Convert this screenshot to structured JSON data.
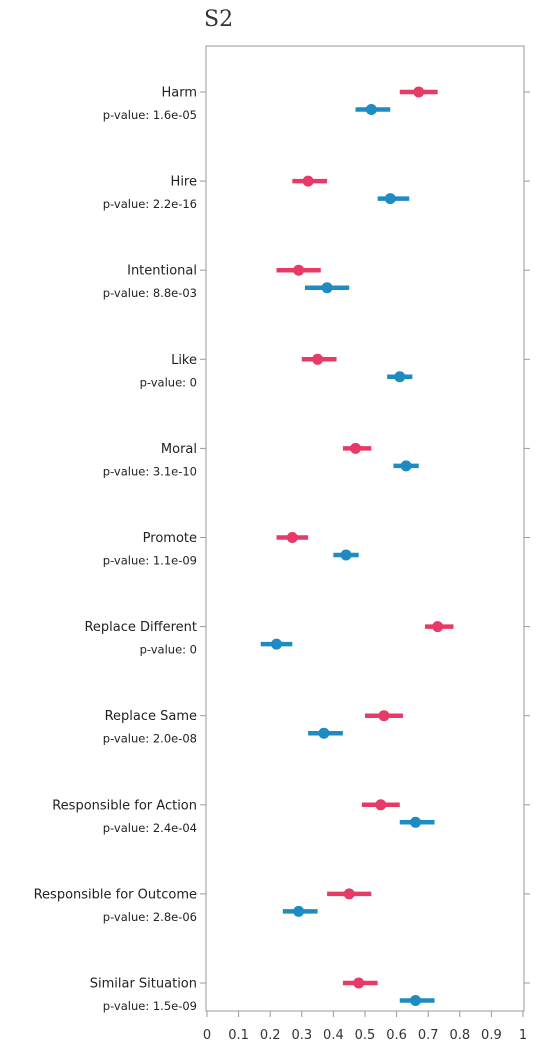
{
  "chart_data": {
    "type": "scatter",
    "title": "S2",
    "xlabel": "",
    "ylabel": "",
    "xlim": [
      0,
      1
    ],
    "x_ticks": [
      "0",
      "0.1",
      "0.2",
      "0.3",
      "0.4",
      "0.5",
      "0.6",
      "0.7",
      "0.8",
      "0.9",
      "1"
    ],
    "grid": false,
    "categories": [
      "Harm",
      "Hire",
      "Intentional",
      "Like",
      "Moral",
      "Promote",
      "Replace Different",
      "Replace Same",
      "Responsible for Action",
      "Responsible for Outcome",
      "Similar Situation"
    ],
    "p_values": [
      "p-value: 1.6e-05",
      "p-value: 2.2e-16",
      "p-value: 8.8e-03",
      "p-value: 0",
      "p-value: 3.1e-10",
      "p-value: 1.1e-09",
      "p-value: 0",
      "p-value: 2.0e-08",
      "p-value: 2.4e-04",
      "p-value: 2.8e-06",
      "p-value: 1.5e-09"
    ],
    "series": [
      {
        "color": "#e83a67",
        "values": [
          0.67,
          0.32,
          0.29,
          0.35,
          0.47,
          0.27,
          0.73,
          0.56,
          0.55,
          0.45,
          0.48
        ],
        "ci_low": [
          0.61,
          0.27,
          0.22,
          0.3,
          0.43,
          0.22,
          0.69,
          0.5,
          0.49,
          0.38,
          0.43
        ],
        "ci_high": [
          0.73,
          0.38,
          0.36,
          0.41,
          0.52,
          0.32,
          0.78,
          0.62,
          0.61,
          0.52,
          0.54
        ]
      },
      {
        "color": "#1e8bc3",
        "values": [
          0.52,
          0.58,
          0.38,
          0.61,
          0.63,
          0.44,
          0.22,
          0.37,
          0.66,
          0.29,
          0.66
        ],
        "ci_low": [
          0.47,
          0.54,
          0.31,
          0.57,
          0.59,
          0.4,
          0.17,
          0.32,
          0.61,
          0.24,
          0.61
        ],
        "ci_high": [
          0.58,
          0.64,
          0.45,
          0.65,
          0.67,
          0.48,
          0.27,
          0.43,
          0.72,
          0.35,
          0.72
        ]
      }
    ]
  }
}
